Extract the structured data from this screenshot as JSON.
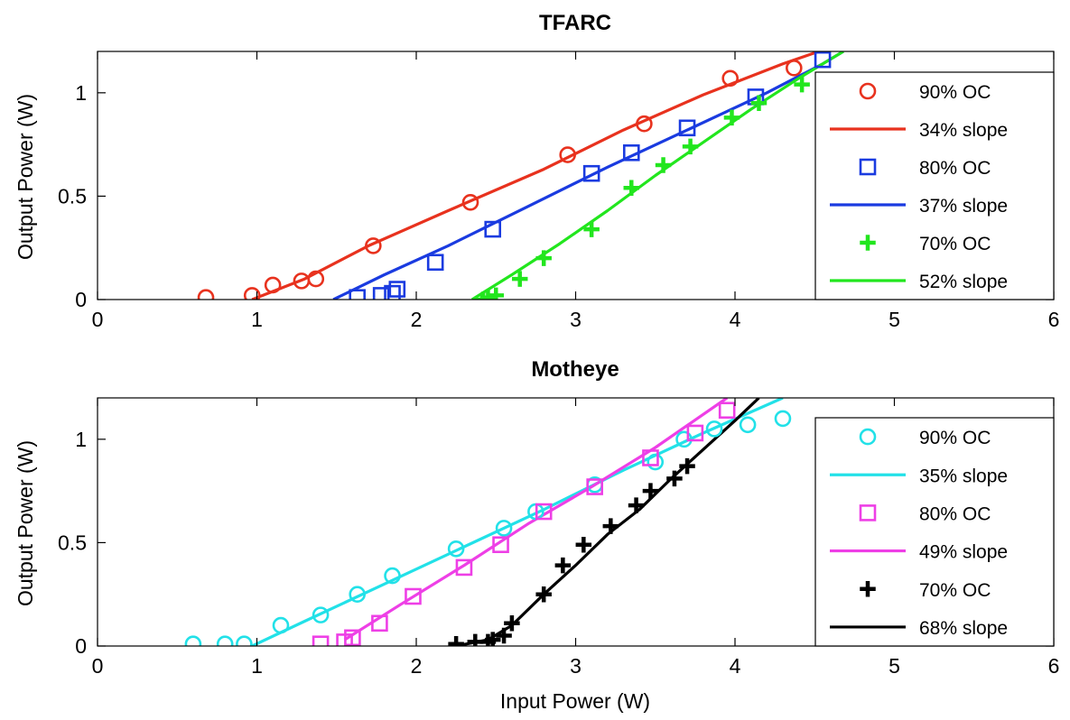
{
  "chart_data": [
    {
      "type": "line",
      "title": "TFARC",
      "xlabel": "",
      "ylabel": "Output Power (W)",
      "xlim": [
        0,
        6
      ],
      "ylim": [
        0,
        1.2
      ],
      "xticks": [
        "0",
        "1",
        "2",
        "3",
        "4",
        "5",
        "6"
      ],
      "yticks": [
        "0",
        "0.5",
        "1"
      ],
      "legend_position": "right",
      "grid": false,
      "series": [
        {
          "name": "90% OC",
          "kind": "scatter",
          "marker": "circle",
          "color": "#e8321e",
          "x": [
            0.68,
            0.97,
            1.1,
            1.28,
            1.37,
            1.73,
            2.34,
            2.95,
            3.43,
            3.97,
            4.37
          ],
          "y": [
            0.01,
            0.02,
            0.07,
            0.09,
            0.1,
            0.26,
            0.47,
            0.7,
            0.85,
            1.07,
            1.12
          ]
        },
        {
          "name": "34% slope",
          "kind": "line",
          "color": "#e8321e",
          "x": [
            0.97,
            1.3,
            1.7,
            2.2,
            2.8,
            3.3,
            3.8,
            4.3,
            4.6
          ],
          "y": [
            0.0,
            0.1,
            0.26,
            0.43,
            0.63,
            0.82,
            0.99,
            1.14,
            1.22
          ]
        },
        {
          "name": "80% OC",
          "kind": "scatter",
          "marker": "square",
          "color": "#1a3be0",
          "x": [
            1.63,
            1.78,
            1.85,
            1.88,
            2.12,
            2.48,
            3.1,
            3.35,
            3.7,
            4.13,
            4.55
          ],
          "y": [
            0.01,
            0.02,
            0.03,
            0.05,
            0.18,
            0.34,
            0.61,
            0.71,
            0.83,
            0.98,
            1.16
          ]
        },
        {
          "name": "37% slope",
          "kind": "line",
          "color": "#1a3be0",
          "x": [
            1.48,
            1.8,
            2.2,
            2.7,
            3.2,
            3.7,
            4.2,
            4.55,
            4.68
          ],
          "y": [
            0.0,
            0.12,
            0.26,
            0.45,
            0.64,
            0.82,
            1.0,
            1.14,
            1.2
          ]
        },
        {
          "name": "70% OC",
          "kind": "scatter",
          "marker": "plus",
          "color": "#22e61e",
          "x": [
            2.42,
            2.45,
            2.5,
            2.65,
            2.8,
            3.1,
            3.35,
            3.55,
            3.72,
            3.98,
            4.15,
            4.42
          ],
          "y": [
            0.0,
            0.01,
            0.02,
            0.1,
            0.2,
            0.34,
            0.54,
            0.65,
            0.74,
            0.88,
            0.95,
            1.04
          ]
        },
        {
          "name": "52% slope",
          "kind": "line",
          "color": "#22e61e",
          "x": [
            2.35,
            2.6,
            2.9,
            3.2,
            3.5,
            3.8,
            4.1,
            4.4,
            4.68
          ],
          "y": [
            0.0,
            0.12,
            0.27,
            0.43,
            0.6,
            0.76,
            0.92,
            1.07,
            1.2
          ]
        }
      ]
    },
    {
      "type": "line",
      "title": "Motheye",
      "xlabel": "Input Power (W)",
      "ylabel": "Output Power (W)",
      "xlim": [
        0,
        6
      ],
      "ylim": [
        0,
        1.2
      ],
      "xticks": [
        "0",
        "1",
        "2",
        "3",
        "4",
        "5",
        "6"
      ],
      "yticks": [
        "0",
        "0.5",
        "1"
      ],
      "legend_position": "right",
      "grid": false,
      "series": [
        {
          "name": "90% OC",
          "kind": "scatter",
          "marker": "circle",
          "color": "#22e1e8",
          "x": [
            0.6,
            0.8,
            0.92,
            1.15,
            1.4,
            1.63,
            1.85,
            2.25,
            2.55,
            2.75,
            3.12,
            3.5,
            3.68,
            3.87,
            4.08,
            4.3
          ],
          "y": [
            0.01,
            0.01,
            0.01,
            0.1,
            0.15,
            0.25,
            0.34,
            0.47,
            0.57,
            0.65,
            0.78,
            0.89,
            1.0,
            1.05,
            1.07,
            1.1
          ]
        },
        {
          "name": "35% slope",
          "kind": "line",
          "color": "#22e1e8",
          "x": [
            0.97,
            1.3,
            1.8,
            2.3,
            2.8,
            3.3,
            3.8,
            4.3
          ],
          "y": [
            0.0,
            0.12,
            0.3,
            0.48,
            0.66,
            0.85,
            1.03,
            1.2
          ]
        },
        {
          "name": "80% OC",
          "kind": "scatter",
          "marker": "square",
          "color": "#ee3fe6",
          "x": [
            1.4,
            1.55,
            1.6,
            1.77,
            1.98,
            2.3,
            2.53,
            2.8,
            3.12,
            3.47,
            3.75,
            3.95
          ],
          "y": [
            0.01,
            0.02,
            0.04,
            0.11,
            0.24,
            0.38,
            0.49,
            0.65,
            0.77,
            0.91,
            1.03,
            1.14
          ]
        },
        {
          "name": "49% slope",
          "kind": "line",
          "color": "#ee3fe6",
          "x": [
            1.55,
            1.9,
            2.3,
            2.7,
            3.1,
            3.5,
            3.95
          ],
          "y": [
            0.03,
            0.2,
            0.39,
            0.59,
            0.77,
            0.96,
            1.2
          ]
        },
        {
          "name": "70% OC",
          "kind": "scatter",
          "marker": "plus",
          "color": "#000000",
          "x": [
            2.25,
            2.37,
            2.45,
            2.48,
            2.55,
            2.6,
            2.8,
            2.92,
            3.05,
            3.22,
            3.38,
            3.47,
            3.62,
            3.7
          ],
          "y": [
            0.01,
            0.02,
            0.02,
            0.03,
            0.05,
            0.11,
            0.25,
            0.39,
            0.49,
            0.58,
            0.68,
            0.75,
            0.81,
            0.87
          ]
        },
        {
          "name": "68% slope",
          "kind": "line",
          "color": "#000000",
          "x": [
            2.25,
            2.45,
            2.6,
            2.8,
            3.0,
            3.2,
            3.4,
            3.6,
            3.8,
            4.0,
            4.15
          ],
          "y": [
            0.0,
            0.03,
            0.1,
            0.25,
            0.39,
            0.54,
            0.66,
            0.81,
            0.95,
            1.09,
            1.2
          ]
        }
      ]
    }
  ]
}
